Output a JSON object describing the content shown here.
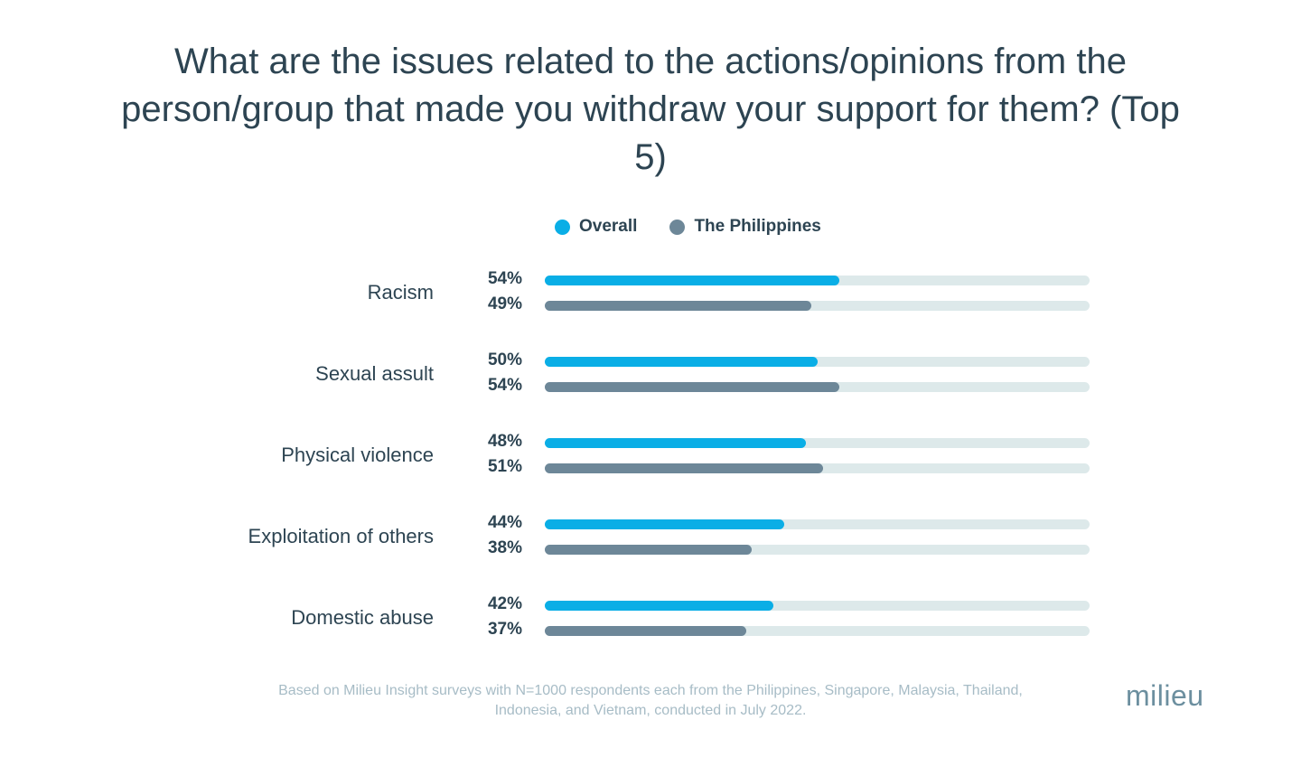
{
  "chart_data": {
    "type": "bar",
    "orientation": "horizontal",
    "title": "What are the issues related to the actions/opinions from the person/group that made you withdraw your support for them? (Top 5)",
    "categories": [
      "Racism",
      "Sexual assult",
      "Physical violence",
      "Exploitation of others",
      "Domestic abuse"
    ],
    "series": [
      {
        "name": "Overall",
        "color": "#0aaee6",
        "values": [
          54,
          50,
          48,
          44,
          42
        ],
        "labels": [
          "54%",
          "50%",
          "48%",
          "44%",
          "42%"
        ]
      },
      {
        "name": "The Philippines",
        "color": "#6d8798",
        "values": [
          49,
          54,
          51,
          38,
          37
        ],
        "labels": [
          "49%",
          "54%",
          "51%",
          "38%",
          "37%"
        ]
      }
    ],
    "xlim": [
      0,
      100
    ],
    "track_color": "#dde9ea",
    "legend_position": "top"
  },
  "footnote": "Based on Milieu Insight surveys with N=1000 respondents each from the Philippines, Singapore, Malaysia, Thailand, Indonesia, and Vietnam, conducted in July 2022.",
  "logo_text": "milieu"
}
